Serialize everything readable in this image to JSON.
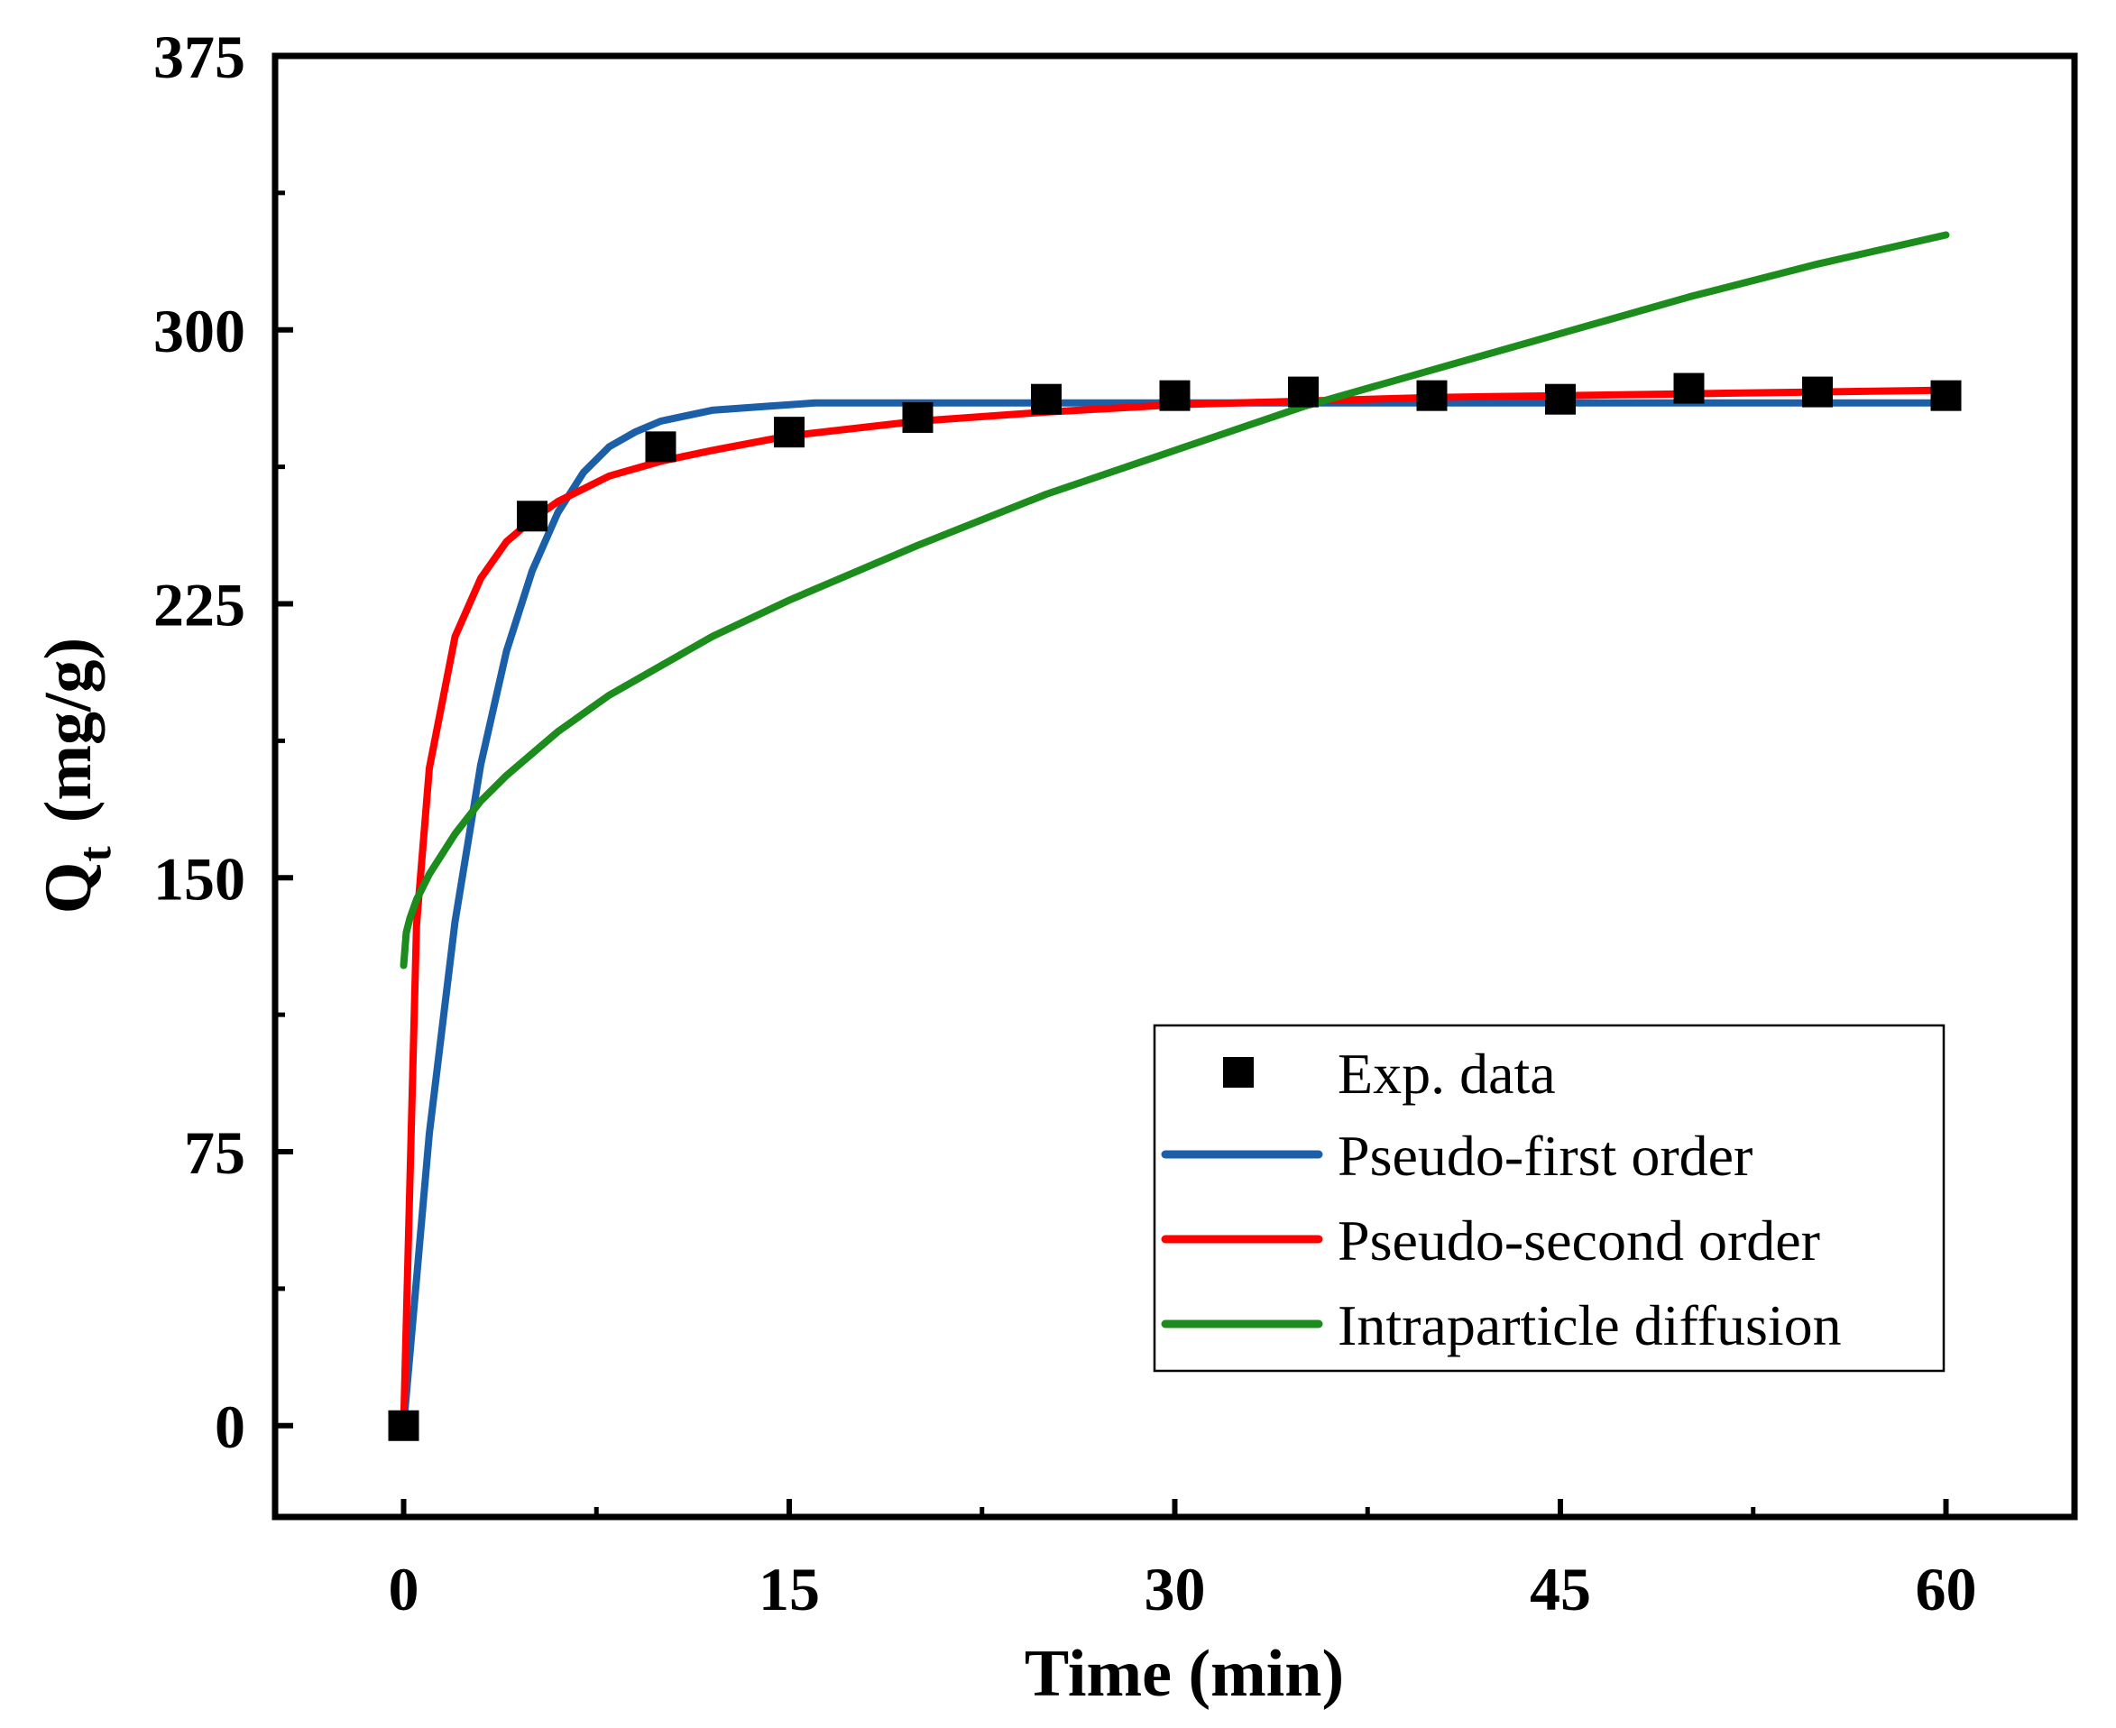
{
  "chart_data": {
    "type": "line",
    "title": "",
    "xlabel": "Time (min)",
    "ylabel": {
      "main": "Q",
      "sub": "t",
      "unit": "(mg/g)"
    },
    "xlim": [
      -5,
      65
    ],
    "ylim": [
      -25,
      375
    ],
    "xticks": [
      0,
      15,
      30,
      45,
      60
    ],
    "yticks": [
      0,
      75,
      150,
      225,
      300,
      375
    ],
    "grid": false,
    "legend_position": "bottom-right",
    "series": [
      {
        "name": "Exp. data",
        "kind": "scatter",
        "color": "#000000",
        "x": [
          0,
          5,
          10,
          15,
          20,
          25,
          30,
          35,
          40,
          45,
          50,
          55,
          60
        ],
        "y": [
          0,
          249,
          268,
          272,
          276,
          281,
          282,
          283,
          282,
          281,
          284,
          283,
          282
        ]
      },
      {
        "name": "Pseudo-first order",
        "kind": "line",
        "color": "#1a5fa8",
        "x": [
          0,
          1,
          2,
          3,
          4,
          5,
          6,
          7,
          8,
          9,
          10,
          12,
          14,
          16,
          18,
          20,
          25,
          30,
          35,
          40,
          45,
          50,
          55,
          60
        ],
        "y": [
          0,
          80,
          138,
          181,
          212,
          234,
          250,
          261,
          268,
          272,
          275,
          278,
          279,
          280,
          280,
          280,
          280,
          280,
          280,
          280,
          280,
          280,
          280,
          280
        ]
      },
      {
        "name": "Pseudo-second order",
        "kind": "line",
        "color": "#ff0000",
        "x": [
          0,
          0.5,
          1,
          2,
          3,
          4,
          5,
          6,
          8,
          10,
          12,
          15,
          20,
          25,
          30,
          35,
          40,
          45,
          50,
          55,
          60
        ],
        "y": [
          0,
          137,
          180,
          216,
          232,
          242,
          248,
          253,
          260,
          264,
          267,
          271,
          275,
          277.5,
          279.5,
          280.5,
          281.5,
          282,
          282.5,
          283,
          283.5
        ]
      },
      {
        "name": "Intraparticle diffusion",
        "kind": "line",
        "color": "#1c8c1c",
        "x": [
          0,
          0.1,
          0.25,
          0.5,
          1,
          2,
          3,
          4,
          5,
          6,
          8,
          10,
          12,
          15,
          20,
          25,
          30,
          35,
          40,
          45,
          50,
          55,
          60
        ],
        "y": [
          126,
          135,
          139,
          144,
          151,
          162,
          171,
          178,
          184,
          190,
          200,
          208,
          216,
          226,
          241,
          255,
          267,
          279,
          289,
          299,
          309,
          318,
          326
        ]
      }
    ]
  }
}
